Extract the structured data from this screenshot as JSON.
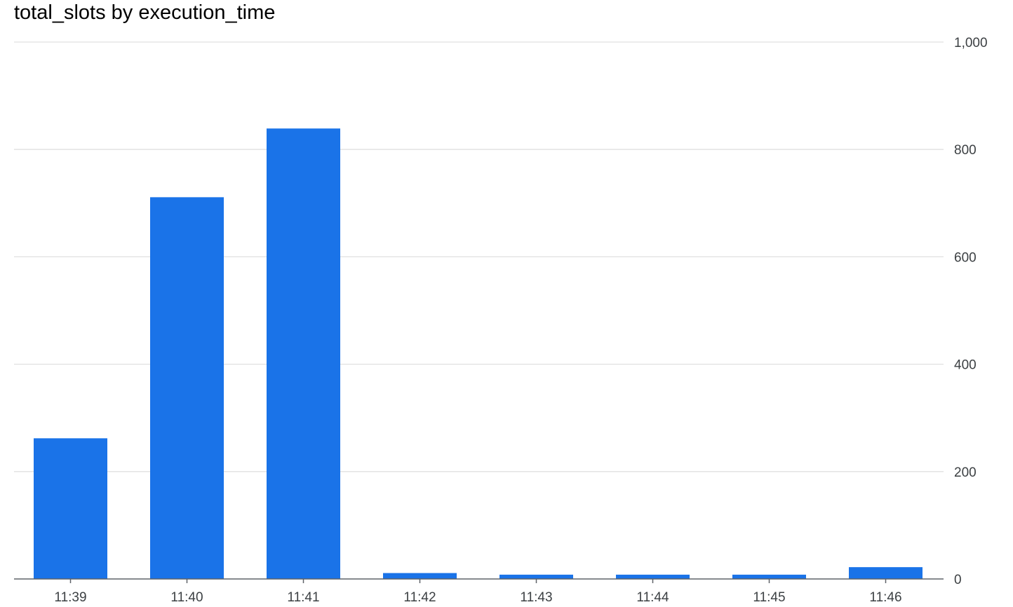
{
  "chart_data": {
    "type": "bar",
    "title": "total_slots by execution_time",
    "xlabel": "",
    "ylabel": "",
    "categories": [
      "11:39",
      "11:40",
      "11:41",
      "11:42",
      "11:43",
      "11:44",
      "11:45",
      "11:46"
    ],
    "series": [
      {
        "values": [
          262,
          711,
          839,
          11,
          8,
          8,
          8,
          22
        ]
      }
    ],
    "ylim": [
      0,
      1000
    ],
    "yticks": [
      0,
      200,
      400,
      600,
      800,
      1000
    ],
    "ytick_labels": [
      "0",
      "200",
      "400",
      "600",
      "800",
      "1,000"
    ],
    "y_axis_side": "right",
    "grid": true,
    "legend": "none",
    "colors": {
      "bar": "#1a73e8",
      "grid": "#e0e0e0",
      "axis": "#5f6368",
      "tick_text": "#3c4043"
    }
  }
}
